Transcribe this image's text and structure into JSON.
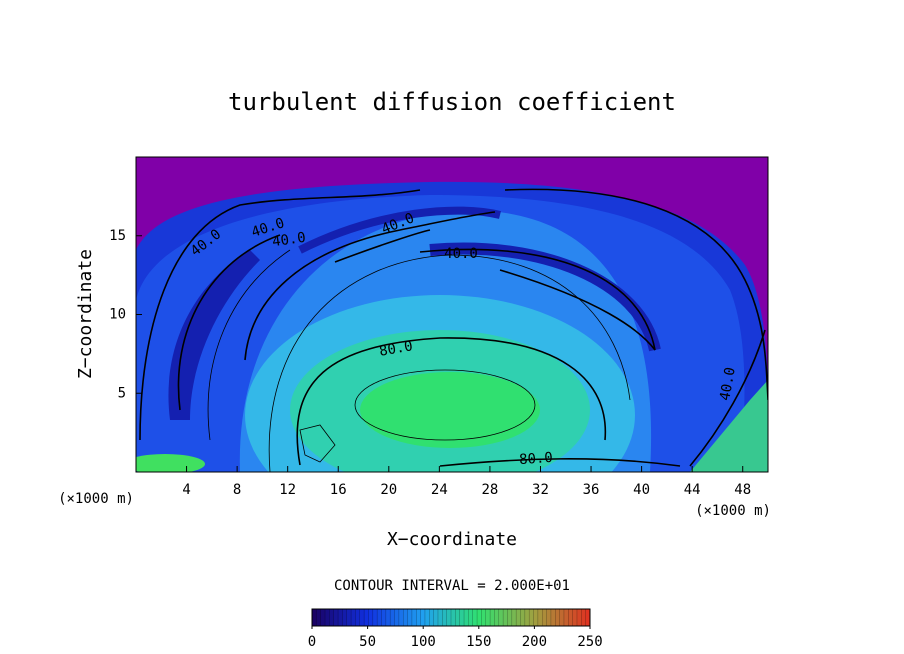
{
  "chart_data": {
    "type": "contour",
    "title": "turbulent diffusion coefficient",
    "xlabel": "X−coordinate",
    "ylabel": "Z−coordinate",
    "x_unit_left": "(×1000 m)",
    "x_unit_right": "(×1000 m)",
    "xlim": [
      0,
      50
    ],
    "xticks": [
      4,
      8,
      12,
      16,
      20,
      24,
      28,
      32,
      36,
      40,
      44,
      48
    ],
    "ylim": [
      0,
      20
    ],
    "yticks": [
      5,
      10,
      15
    ],
    "contour_labels": [
      "40.0",
      "40.0",
      "40.0",
      "40.0",
      "40.0",
      "40.0",
      "80.0",
      "80.0"
    ],
    "contour_interval_label": "CONTOUR INTERVAL = 2.000E+01",
    "colorbar_lim": [
      0,
      250
    ],
    "colorbar_ticks": [
      0,
      50,
      100,
      150,
      200,
      250
    ],
    "colormap": [
      "#1a0060",
      "#1030e0",
      "#20a0f0",
      "#30e070",
      "#a0a040",
      "#e03020"
    ]
  }
}
